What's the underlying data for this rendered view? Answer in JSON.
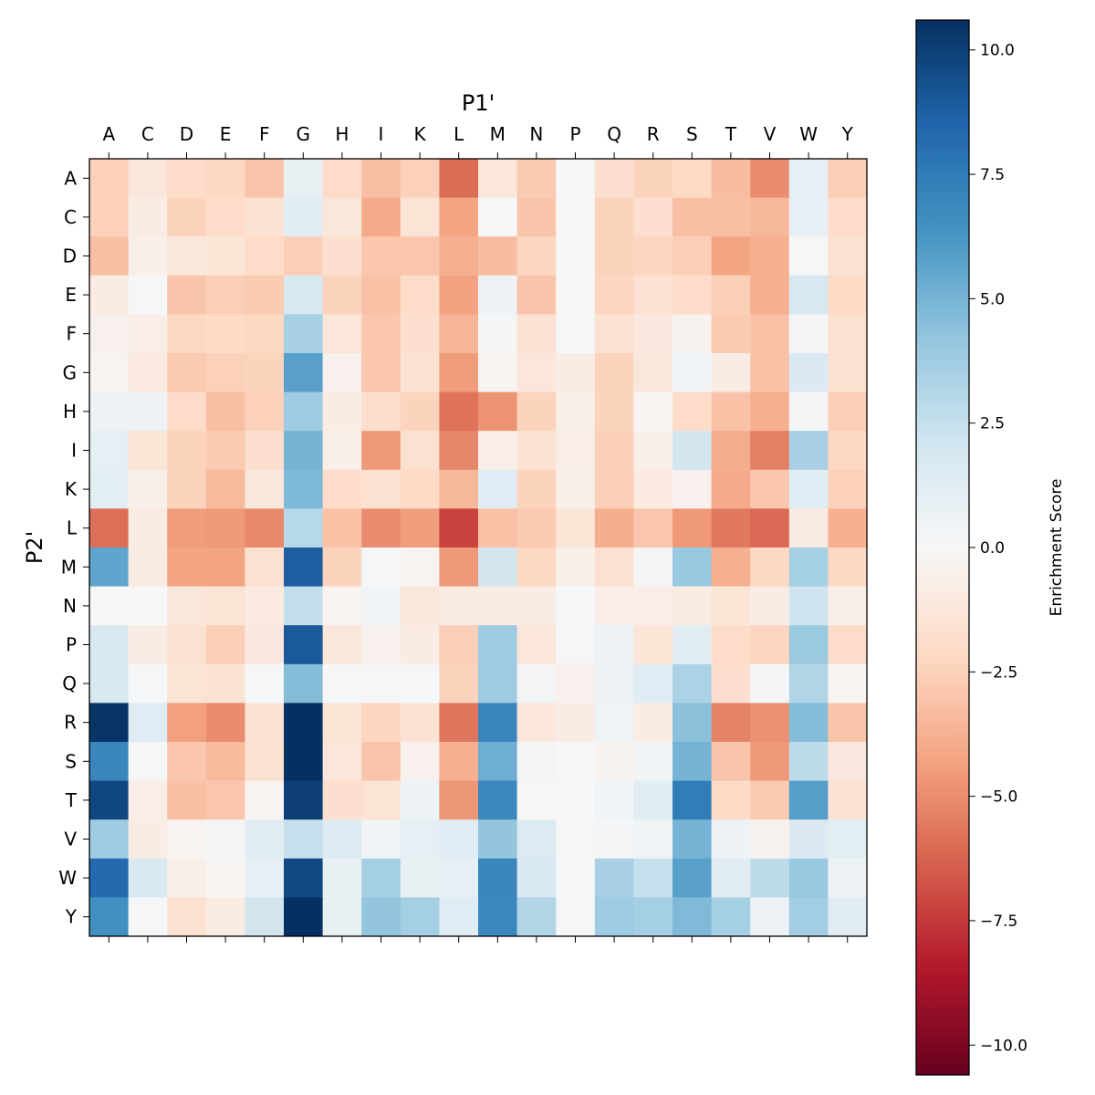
{
  "chart_data": {
    "type": "heatmap",
    "xlabel": "P1'",
    "ylabel": "P2'",
    "colorbar_label": "Enrichment Score",
    "colormap": "RdBu",
    "vmin": -10.6,
    "vmax": 10.6,
    "colorbar_ticks": [
      10.0,
      7.5,
      5.0,
      2.5,
      0.0,
      -2.5,
      -5.0,
      -7.5,
      -10.0
    ],
    "colorbar_tick_labels": [
      "10.0",
      "7.5",
      "5.0",
      "2.5",
      "0.0",
      "−2.5",
      "−5.0",
      "−7.5",
      "−10.0"
    ],
    "x_categories": [
      "A",
      "C",
      "D",
      "E",
      "F",
      "G",
      "H",
      "I",
      "K",
      "L",
      "M",
      "N",
      "P",
      "Q",
      "R",
      "S",
      "T",
      "V",
      "W",
      "Y"
    ],
    "y_categories": [
      "A",
      "C",
      "D",
      "E",
      "F",
      "G",
      "H",
      "I",
      "K",
      "L",
      "M",
      "N",
      "P",
      "Q",
      "R",
      "S",
      "T",
      "V",
      "W",
      "Y"
    ],
    "values": [
      [
        -2.5,
        -1.2,
        -2,
        -2.2,
        -3,
        0.8,
        -2,
        -3.2,
        -2.5,
        -6,
        -1.3,
        -2.8,
        0,
        -1.8,
        -2.4,
        -2.1,
        -3.3,
        -5,
        1,
        -2.6
      ],
      [
        -2.5,
        -0.8,
        -2.4,
        -2,
        -1.6,
        1.2,
        -1.2,
        -4,
        -1.5,
        -4.2,
        0,
        -3,
        0,
        -2.4,
        -1.8,
        -3.2,
        -3.2,
        -3.5,
        0.9,
        -2
      ],
      [
        -3.2,
        -0.6,
        -1.2,
        -1.4,
        -2,
        -2.6,
        -1.8,
        -2.9,
        -2.9,
        -3.8,
        -3.3,
        -2.3,
        0,
        -2.4,
        -2.3,
        -2.6,
        -4.2,
        -3.8,
        0.1,
        -1.7
      ],
      [
        -0.9,
        0.1,
        -3,
        -2.6,
        -2.8,
        1.8,
        -2.4,
        -3.1,
        -2,
        -4.3,
        0.6,
        -3,
        0,
        -2.3,
        -1.6,
        -2,
        -2.6,
        -3.8,
        1.8,
        -2.1
      ],
      [
        -0.5,
        -0.7,
        -2.2,
        -2.1,
        -2.2,
        3.5,
        -1.3,
        -2.9,
        -1.8,
        -3.6,
        0.2,
        -1.6,
        0.1,
        -1.6,
        -1.1,
        -0.4,
        -2.8,
        -3.1,
        0.2,
        -1.7
      ],
      [
        -0.3,
        -1,
        -2.8,
        -2.5,
        -2.4,
        5.8,
        -0.5,
        -2.9,
        -1.6,
        -4.5,
        -0.2,
        -1.3,
        -0.8,
        -2.4,
        -1.2,
        0.4,
        -0.8,
        -3.1,
        1.6,
        -1.7
      ],
      [
        0.6,
        0.6,
        -2,
        -3.2,
        -2.5,
        3.8,
        -0.9,
        -1.9,
        -2.4,
        -5.8,
        -4.8,
        -2.4,
        -0.6,
        -2.4,
        -0.2,
        -2,
        -3.1,
        -3.8,
        0.2,
        -2.6
      ],
      [
        1,
        -1.4,
        -2.4,
        -2.8,
        -1.8,
        5,
        -0.6,
        -4.6,
        -1.7,
        -5.2,
        -0.7,
        -1.6,
        -0.7,
        -2.6,
        -0.6,
        2,
        -3.9,
        -5.4,
        3.5,
        -2.2
      ],
      [
        1.1,
        -0.6,
        -2.4,
        -3.4,
        -1.2,
        4.8,
        -2,
        -1.7,
        -2.1,
        -3.5,
        1.3,
        -2.4,
        -0.6,
        -2.6,
        -1,
        -0.5,
        -4,
        -2.9,
        1.3,
        -2.5
      ],
      [
        -5.9,
        -0.9,
        -4.5,
        -4.6,
        -5.1,
        3,
        -3.1,
        -5,
        -4.5,
        -7.2,
        -3.1,
        -2.8,
        -1.4,
        -3.9,
        -2.9,
        -4.6,
        -5.6,
        -6.1,
        -0.9,
        -3.8
      ],
      [
        5.6,
        -0.9,
        -4.2,
        -4.2,
        -1.7,
        8.8,
        -2.4,
        0.1,
        -0.3,
        -4.6,
        2,
        -2.2,
        -0.6,
        -1.7,
        0.2,
        4,
        -3.8,
        -2.2,
        3.6,
        -2.2
      ],
      [
        0,
        0,
        -1.2,
        -1.5,
        -1,
        2.6,
        -0.3,
        0.4,
        -1.2,
        -0.9,
        -0.8,
        -0.8,
        0.1,
        -0.7,
        -0.7,
        -0.9,
        -1.4,
        -0.8,
        2.2,
        -0.6
      ],
      [
        1.7,
        -0.8,
        -1.7,
        -2.6,
        -1.1,
        9,
        -1.2,
        -0.5,
        -0.9,
        -2.6,
        3.8,
        -1.3,
        0.1,
        0.6,
        -1.4,
        1.2,
        -2,
        -2.3,
        3.9,
        -2
      ],
      [
        1.7,
        0.1,
        -1.5,
        -1.6,
        0.1,
        4.6,
        0.1,
        0.1,
        0.1,
        -2.4,
        3.8,
        0.3,
        -0.5,
        0.6,
        1.3,
        3.4,
        -1.8,
        0.2,
        3.2,
        -0.2
      ],
      [
        10.4,
        1.3,
        -4.4,
        -5,
        -1.6,
        10.6,
        -1.5,
        -2.3,
        -1.6,
        -5.7,
        7,
        -1.3,
        -0.8,
        0.5,
        -0.8,
        4.4,
        -5.3,
        -4.9,
        4.6,
        -3
      ],
      [
        7,
        0.1,
        -2.9,
        -3.4,
        -1.7,
        10.6,
        -1.3,
        -3,
        -0.5,
        -3.8,
        5.2,
        0.3,
        0.1,
        -0.4,
        0.4,
        5,
        -3,
        -4.6,
        2.8,
        -1.1
      ],
      [
        9.7,
        -0.7,
        -3.2,
        -2.9,
        -0.2,
        10,
        -1.8,
        -1.5,
        0.6,
        -4.7,
        6.9,
        -0.1,
        0,
        0.4,
        1.2,
        7.4,
        -2.1,
        -2.8,
        5.9,
        -1.6
      ],
      [
        3.8,
        -0.8,
        -0.3,
        0.2,
        1.2,
        2.5,
        1.5,
        0.4,
        1,
        1.3,
        4.2,
        1.5,
        0.1,
        0.2,
        0.5,
        5,
        0.6,
        -0.4,
        1.6,
        1.1
      ],
      [
        8.3,
        1.7,
        -0.6,
        -0.2,
        1,
        9.6,
        0.8,
        3.6,
        0.7,
        1,
        7,
        1.7,
        0.1,
        3.5,
        2.5,
        5.8,
        1.2,
        2.8,
        4,
        0.6
      ],
      [
        6.5,
        0.1,
        -1.7,
        -0.9,
        2,
        10.6,
        0.8,
        4.2,
        3.6,
        1.3,
        6.9,
        3.2,
        0.1,
        3.8,
        3.6,
        4.7,
        3.6,
        0.6,
        3.7,
        1.2
      ]
    ],
    "grid": false,
    "legend": "colorbar right"
  }
}
